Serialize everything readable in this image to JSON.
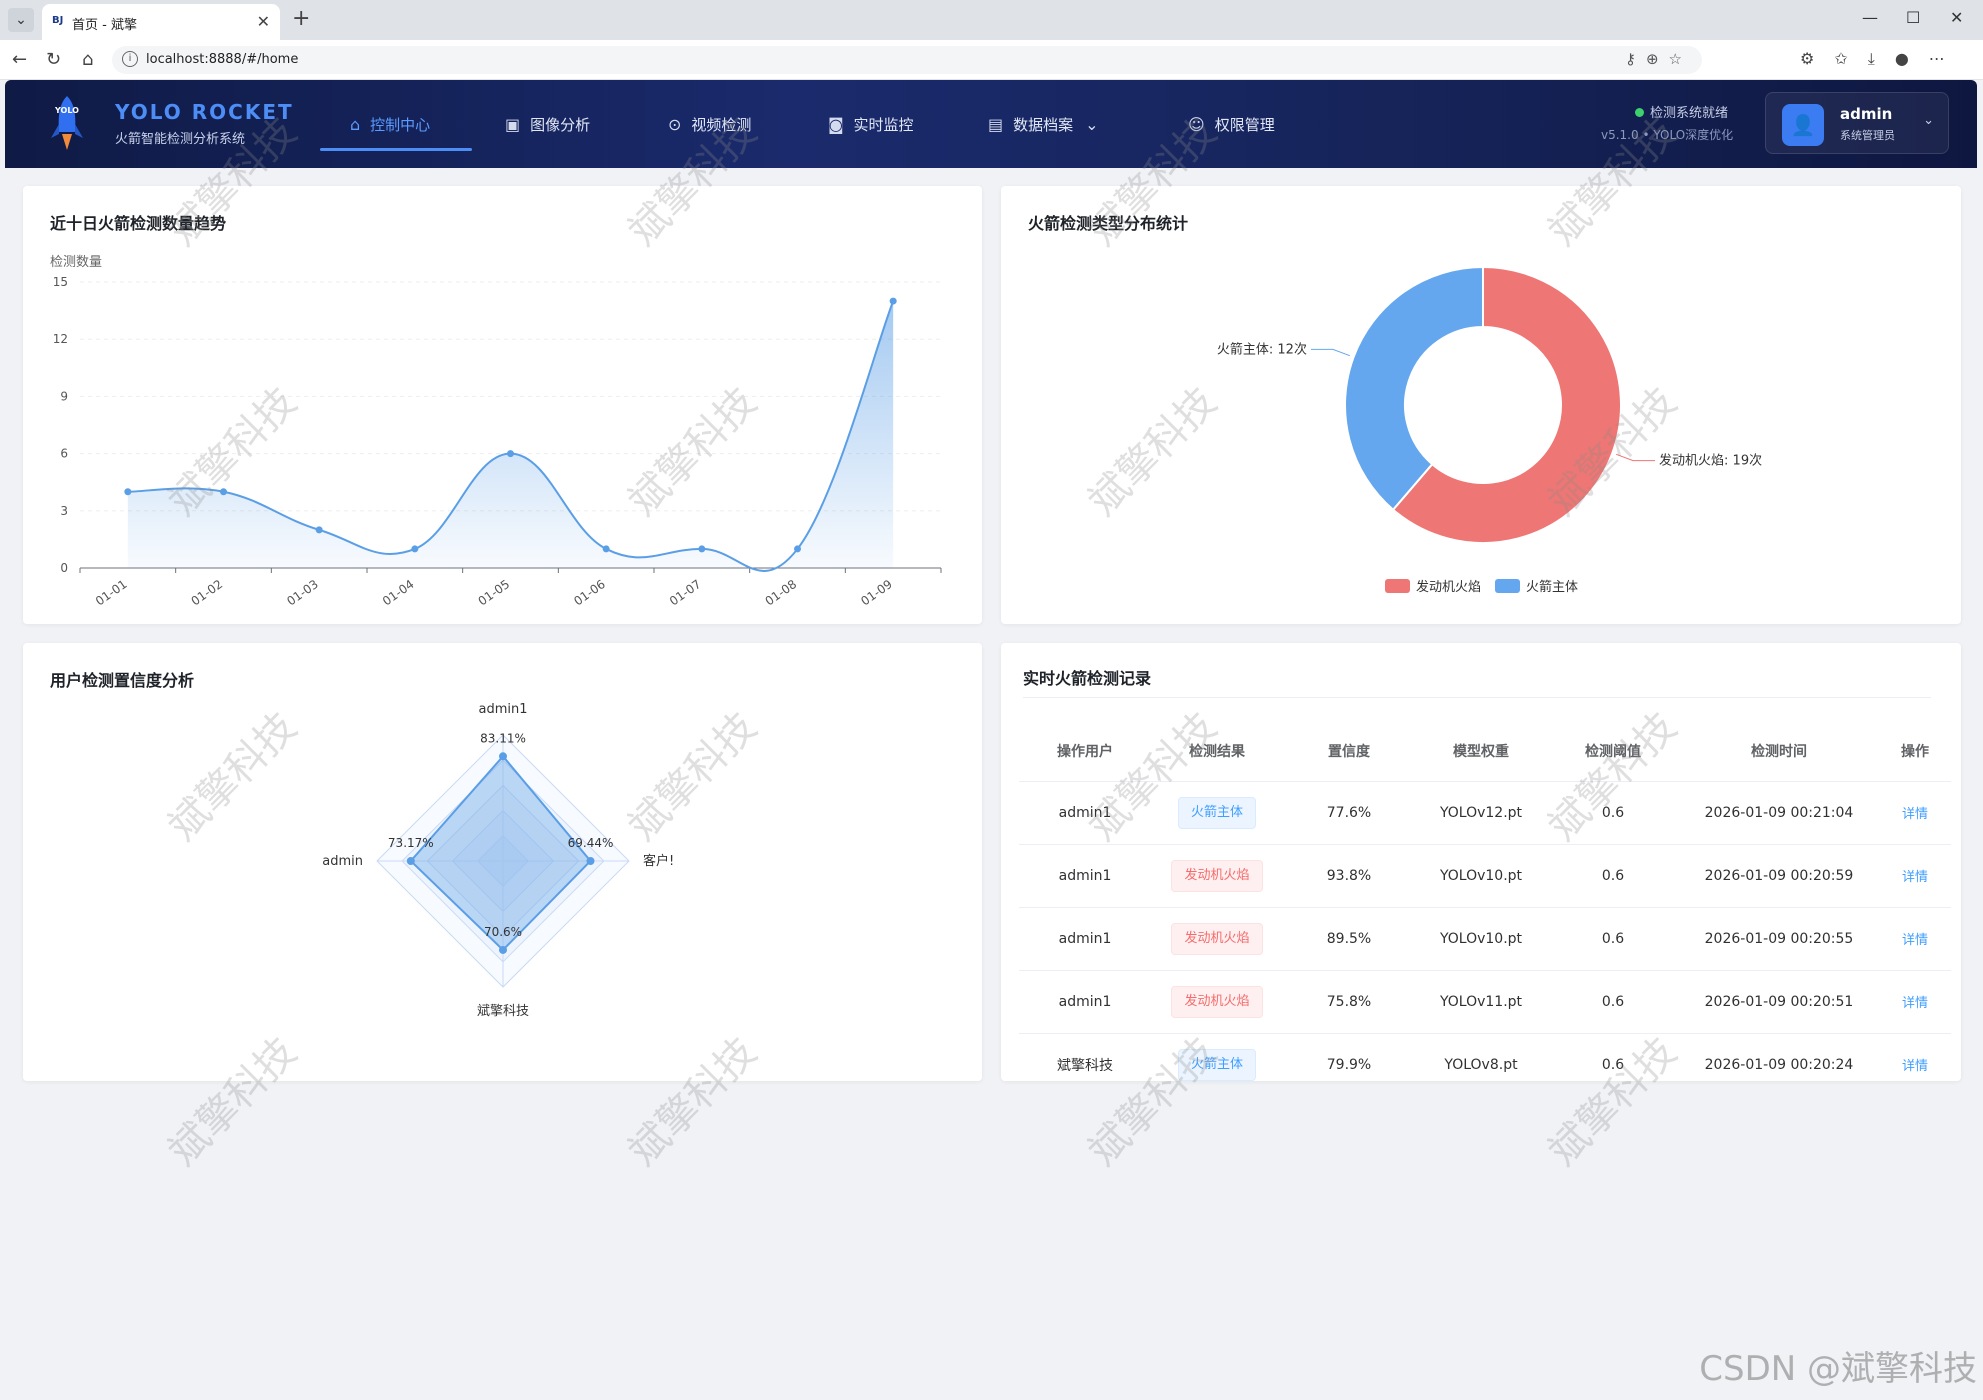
{
  "browser": {
    "tab_title": "首页 - 斌擎",
    "favicon_text": "BJ",
    "url": "localhost:8888/#/home"
  },
  "header": {
    "brand_title": "YOLO ROCKET",
    "brand_subtitle": "火箭智能检测分析系统",
    "logo_text": "YOLO",
    "nav": [
      {
        "label": "控制中心",
        "icon": "home-icon",
        "active": true
      },
      {
        "label": "图像分析",
        "icon": "image-icon"
      },
      {
        "label": "视频检测",
        "icon": "play-circle-icon"
      },
      {
        "label": "实时监控",
        "icon": "camera-icon"
      },
      {
        "label": "数据档案",
        "icon": "document-icon",
        "dropdown": true
      },
      {
        "label": "权限管理",
        "icon": "user-icon"
      }
    ],
    "status_text": "检测系统就绪",
    "version_text": "v5.1.0 • YOLO深度优化",
    "user_name": "admin",
    "user_role": "系统管理员"
  },
  "trend_card": {
    "title": "近十日火箭检测数量趋势"
  },
  "donut_card": {
    "title": "火箭检测类型分布统计"
  },
  "radar_card": {
    "title": "用户检测置信度分析"
  },
  "records_card": {
    "title": "实时火箭检测记录",
    "columns": [
      "操作用户",
      "检测结果",
      "置信度",
      "模型权重",
      "检测阈值",
      "检测时间",
      "操作"
    ],
    "rows": [
      {
        "user": "admin1",
        "result": "火箭主体",
        "result_type": "blue",
        "confidence": "77.6%",
        "model": "YOLOv12.pt",
        "threshold": "0.6",
        "time": "2026-01-09 00:21:04",
        "action": "详情"
      },
      {
        "user": "admin1",
        "result": "发动机火焰",
        "result_type": "red",
        "confidence": "93.8%",
        "model": "YOLOv10.pt",
        "threshold": "0.6",
        "time": "2026-01-09 00:20:59",
        "action": "详情"
      },
      {
        "user": "admin1",
        "result": "发动机火焰",
        "result_type": "red",
        "confidence": "89.5%",
        "model": "YOLOv10.pt",
        "threshold": "0.6",
        "time": "2026-01-09 00:20:55",
        "action": "详情"
      },
      {
        "user": "admin1",
        "result": "发动机火焰",
        "result_type": "red",
        "confidence": "75.8%",
        "model": "YOLOv11.pt",
        "threshold": "0.6",
        "time": "2026-01-09 00:20:51",
        "action": "详情"
      },
      {
        "user": "斌擎科技",
        "result": "火箭主体",
        "result_type": "blue",
        "confidence": "79.9%",
        "model": "YOLOv8.pt",
        "threshold": "0.6",
        "time": "2026-01-09 00:20:24",
        "action": "详情"
      }
    ]
  },
  "chart_data": [
    {
      "type": "area",
      "title": "近十日火箭检测数量趋势",
      "ylabel": "检测数量",
      "categories": [
        "01-01",
        "01-02",
        "01-03",
        "01-04",
        "01-05",
        "01-06",
        "01-07",
        "01-08",
        "01-09"
      ],
      "values": [
        4,
        4,
        2,
        1,
        6,
        1,
        1,
        1,
        14
      ],
      "ylim": [
        0,
        15
      ],
      "yticks": [
        0,
        3,
        6,
        9,
        12,
        15
      ],
      "smooth": true,
      "color": "#5a9ee6"
    },
    {
      "type": "pie",
      "title": "火箭检测类型分布统计",
      "donut": true,
      "slices": [
        {
          "name": "发动机火焰",
          "value": 19,
          "label": "发动机火焰: 19次",
          "color": "#ee7674"
        },
        {
          "name": "火箭主体",
          "value": 12,
          "label": "火箭主体: 12次",
          "color": "#65a7ee"
        }
      ],
      "legend": [
        "发动机火焰",
        "火箭主体"
      ],
      "legend_position": "bottom"
    },
    {
      "type": "radar",
      "title": "用户检测置信度分析",
      "axes": [
        "admin1",
        "客户!",
        "斌擎科技",
        "admin"
      ],
      "values": [
        83.11,
        69.44,
        70.6,
        73.17
      ],
      "value_labels": [
        "83.11%",
        "69.44%",
        "70.6%",
        "73.17%"
      ],
      "max": 100,
      "color": "#5a9ee6"
    }
  ],
  "watermark_text": "斌擎科技",
  "corner_watermark": "CSDN @斌擎科技"
}
